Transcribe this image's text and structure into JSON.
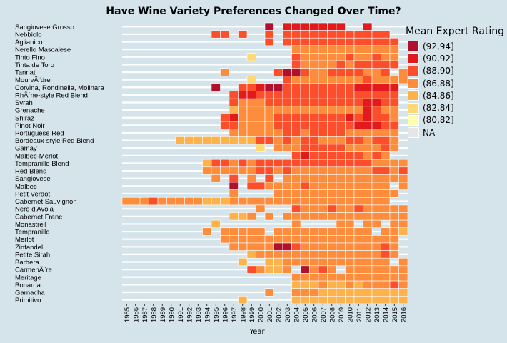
{
  "chart_data": {
    "type": "heatmap",
    "title": "Have Wine Variety Preferences Changed Over Time?",
    "xlabel": "Year",
    "ylabel": "",
    "x": [
      "1985",
      "1986",
      "1987",
      "1988",
      "1989",
      "1990",
      "1991",
      "1992",
      "1993",
      "1994",
      "1995",
      "1996",
      "1997",
      "1998",
      "1999",
      "2000",
      "2001",
      "2002",
      "2003",
      "2004",
      "2005",
      "2006",
      "2007",
      "2008",
      "2009",
      "2010",
      "2011",
      "2012",
      "2013",
      "2014",
      "2015",
      "2016"
    ],
    "y": [
      "Sangiovese Grosso",
      "Nebbiolo",
      "Aglianico",
      "Nerello Mascalese",
      "Tinto Fino",
      "Tinta de Toro",
      "Tannat",
      "MourvÃ¨dre",
      "Corvina, Rondinella, Molinara",
      "RhÃ´ne-style Red Blend",
      "Syrah",
      "Grenache",
      "Shiraz",
      "Pinot Noir",
      "Portuguese Red",
      "Bordeaux-style Red Blend",
      "Gamay",
      "Malbec-Merlot",
      "Tempranillo Blend",
      "Red Blend",
      "Sangiovese",
      "Malbec",
      "Petit Verdot",
      "Cabernet Sauvignon",
      "Nero d'Avola",
      "Cabernet Franc",
      "Monastrell",
      "Tempranillo",
      "Merlot",
      "Zinfandel",
      "Petite Sirah",
      "Barbera",
      "CarmenÃ¨re",
      "Meritage",
      "Bonarda",
      "Garnacha",
      "Primitivo"
    ],
    "legend": {
      "title": "Mean Expert Rating",
      "entries": [
        {
          "label": "(92,94]",
          "color": "#b10f2e"
        },
        {
          "label": "(90,92]",
          "color": "#e31a1c"
        },
        {
          "label": "(88,90]",
          "color": "#fc4e2a"
        },
        {
          "label": "(86,88]",
          "color": "#fd8d3c"
        },
        {
          "label": "(84,86]",
          "color": "#feb24c"
        },
        {
          "label": "(82,84]",
          "color": "#fed976"
        },
        {
          "label": "(80,82]",
          "color": "#ffffb2"
        },
        {
          "label": "NA",
          "color": "#e6e6e6"
        }
      ]
    },
    "cells": [
      "................1.2222222..2....",
      "..........33.3..3.333333333333..",
      "................3.3333333333333.",
      "...................444444444444.",
      "..............6....344444344344.",
      "...................344443433333.",
      "...........4.....3113443333443.4",
      "..............6...34444444434444",
      "..........1..332113333333322222.",
      "............3223333333333333333.",
      "............3444333333333332233.",
      "............5444444444444442344.",
      "...........32444433333333232334.",
      "...........33444433333333322233.",
      "............4444443343333444444.",
      "......5555555553343433444334334.",
      "...............6.44433333444434.",
      "...................32333333434..",
      ".........53343433333333333334444",
      ".........44444433434444444443343",
      "..........4.3.4.3.44444444444444",
      "............1.3344443444444444.4",
      "............4....44444444444444.",
      "444344444555444444444444444444..",
      "...............4...3444344344444",
      "............554.4.44444444444444",
      "..........5........4....44.44.44",
      ".........4.44444.44444444444.445",
      "...........44444444444444444444.",
      "............4444411344444444434.",
      "..............54444444444444434.",
      ".............5..55444444444444.4",
      "..............34554.1434.4444444",
      "...................4444444444444",
      "...................5554554544434",
      "................4..4445555555555",
      ".............5.....5555555555555"
    ]
  }
}
